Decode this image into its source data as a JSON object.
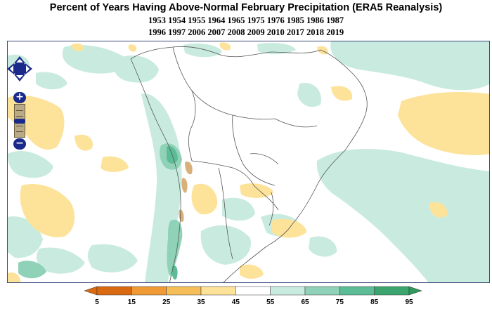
{
  "title": "Percent of Years Having Above-Normal February Precipitation (ERA5 Reanalysis)",
  "years_line1": "1953 1954 1955 1964 1965 1975 1976 1985 1986 1987",
  "years_line2": "1996 1997 2006 2007 2008 2009 2010 2017 2018 2019",
  "map": {
    "region": "South America",
    "controls": {
      "pan_icon": "pan-arrows-icon",
      "zoom_in_label": "+",
      "zoom_out_label": "−"
    }
  },
  "legend": {
    "colors": [
      "#d96a12",
      "#f09a36",
      "#f5be58",
      "#fde29a",
      "#ffffff",
      "#c9ebdf",
      "#8fd2b7",
      "#5cbc96",
      "#3ca56f"
    ],
    "ticks": [
      "5",
      "15",
      "25",
      "35",
      "45",
      "55",
      "65",
      "75",
      "85",
      "95"
    ],
    "low_arrow_color": "#d96a12",
    "high_arrow_color": "#2f9a5b"
  }
}
